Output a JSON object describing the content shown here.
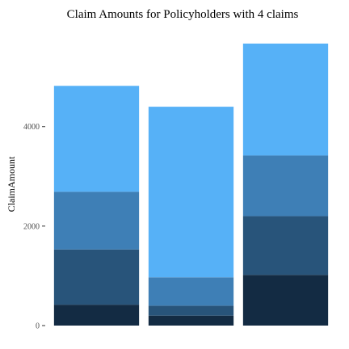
{
  "chart_data": {
    "type": "bar",
    "stacked": true,
    "title": "Claim Amounts for Policyholders with 4 claims",
    "xlabel": "",
    "ylabel": "ClaimAmount",
    "ylim": [
      0,
      5750
    ],
    "yticks": [
      "0",
      "2000",
      "4000"
    ],
    "ytick_values": [
      0,
      2000,
      4000
    ],
    "grid": false,
    "legend": "none",
    "categories": [
      "",
      "",
      ""
    ],
    "series": [
      {
        "color": "#132b43",
        "values": [
          420,
          200,
          1020
        ]
      },
      {
        "color": "#28547a",
        "values": [
          1110,
          200,
          1180
        ]
      },
      {
        "color": "#3e7fb6",
        "values": [
          1160,
          570,
          1220
        ]
      },
      {
        "color": "#56b1f7",
        "values": [
          2130,
          3430,
          2250
        ]
      }
    ],
    "colors": {
      "background": "#ffffff"
    }
  }
}
